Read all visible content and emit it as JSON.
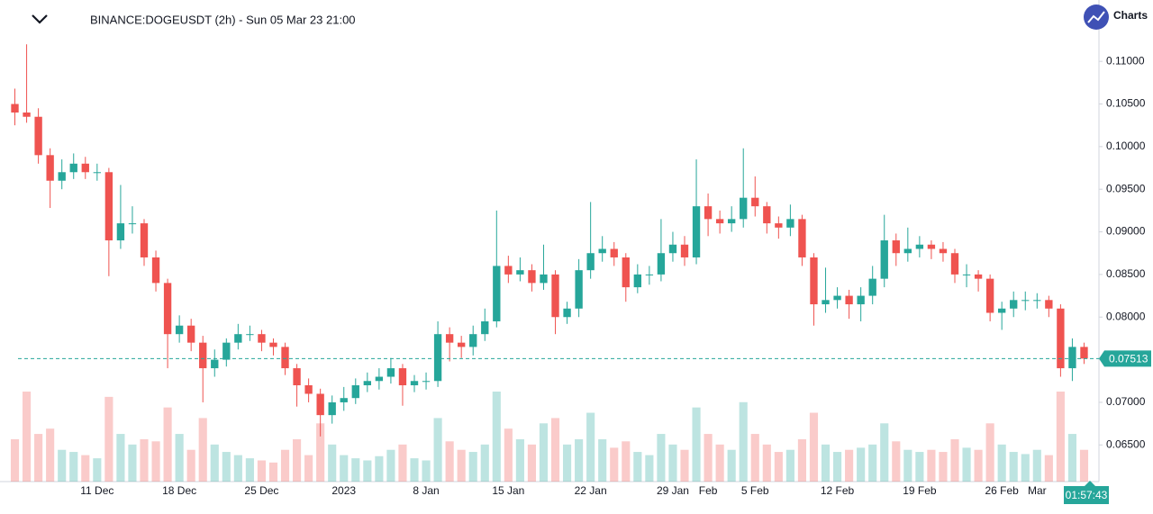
{
  "chart_data": {
    "type": "candlestick",
    "title": "BINANCE:DOGEUSDT (2h) - Sun 05 Mar 23 21:00",
    "categories": [
      null,
      null,
      null,
      null,
      null,
      null,
      null,
      "11 Dec",
      null,
      null,
      null,
      null,
      null,
      null,
      "18 Dec",
      null,
      null,
      null,
      null,
      null,
      null,
      "25 Dec",
      null,
      null,
      null,
      null,
      null,
      null,
      "2023",
      null,
      null,
      null,
      null,
      null,
      null,
      "8 Jan",
      null,
      null,
      null,
      null,
      null,
      null,
      "15 Jan",
      null,
      null,
      null,
      null,
      null,
      null,
      "22 Jan",
      null,
      null,
      null,
      null,
      null,
      null,
      "29 Jan",
      null,
      null,
      "Feb",
      null,
      null,
      null,
      "5 Feb",
      null,
      null,
      null,
      null,
      null,
      null,
      "12 Feb",
      null,
      null,
      null,
      null,
      null,
      null,
      "19 Feb",
      null,
      null,
      null,
      null,
      null,
      null,
      "26 Feb",
      null,
      null,
      "Mar",
      null,
      null,
      null,
      null
    ],
    "open": [
      0.105,
      0.104,
      0.1035,
      0.099,
      0.096,
      0.097,
      0.098,
      0.097,
      0.097,
      0.089,
      0.091,
      0.091,
      0.087,
      0.084,
      0.078,
      0.079,
      0.077,
      0.074,
      0.075,
      0.077,
      0.078,
      0.078,
      0.077,
      0.0765,
      0.074,
      0.072,
      0.071,
      0.0685,
      0.07,
      0.0705,
      0.072,
      0.0725,
      0.073,
      0.074,
      0.072,
      0.0725,
      0.0725,
      0.078,
      0.077,
      0.0765,
      0.078,
      0.0795,
      0.086,
      0.085,
      0.0855,
      0.084,
      0.085,
      0.08,
      0.081,
      0.0855,
      0.0875,
      0.088,
      0.087,
      0.0835,
      0.085,
      0.085,
      0.0875,
      0.0885,
      0.087,
      0.093,
      0.0915,
      0.091,
      0.0915,
      0.094,
      0.093,
      0.091,
      0.0905,
      0.0915,
      0.087,
      0.0815,
      0.082,
      0.0825,
      0.0815,
      0.0825,
      0.0845,
      0.089,
      0.0875,
      0.088,
      0.0885,
      0.088,
      0.0875,
      0.085,
      0.085,
      0.0845,
      0.0805,
      0.081,
      0.082,
      0.082,
      0.082,
      0.081,
      0.074,
      0.0765
    ],
    "high": [
      0.1068,
      0.112,
      0.1045,
      0.0998,
      0.0985,
      0.0992,
      0.0988,
      0.098,
      0.0975,
      0.0955,
      0.093,
      0.0915,
      0.0878,
      0.0845,
      0.0802,
      0.0798,
      0.0778,
      0.0762,
      0.0775,
      0.0792,
      0.079,
      0.0785,
      0.0775,
      0.077,
      0.0745,
      0.0728,
      0.0716,
      0.0708,
      0.0718,
      0.0728,
      0.0735,
      0.074,
      0.0752,
      0.0745,
      0.0732,
      0.0735,
      0.0795,
      0.0788,
      0.0778,
      0.079,
      0.081,
      0.0925,
      0.0872,
      0.087,
      0.0862,
      0.0885,
      0.0855,
      0.0818,
      0.0868,
      0.0935,
      0.0895,
      0.0888,
      0.0875,
      0.0862,
      0.086,
      0.0915,
      0.09,
      0.0895,
      0.0985,
      0.0945,
      0.0925,
      0.093,
      0.0998,
      0.0965,
      0.0935,
      0.0918,
      0.0932,
      0.092,
      0.0875,
      0.0858,
      0.0835,
      0.0832,
      0.0835,
      0.086,
      0.092,
      0.0898,
      0.0905,
      0.0895,
      0.089,
      0.0888,
      0.088,
      0.0862,
      0.0855,
      0.085,
      0.0818,
      0.083,
      0.083,
      0.0828,
      0.0825,
      0.0815,
      0.0775,
      0.077
    ],
    "low": [
      0.1025,
      0.1028,
      0.098,
      0.0928,
      0.095,
      0.0962,
      0.0962,
      0.096,
      0.0848,
      0.088,
      0.0898,
      0.086,
      0.083,
      0.074,
      0.077,
      0.076,
      0.07,
      0.073,
      0.0742,
      0.0762,
      0.0772,
      0.076,
      0.0755,
      0.0732,
      0.0695,
      0.07,
      0.066,
      0.0675,
      0.069,
      0.0698,
      0.0712,
      0.0715,
      0.0722,
      0.0696,
      0.0712,
      0.0715,
      0.0718,
      0.0748,
      0.0752,
      0.0755,
      0.0772,
      0.0788,
      0.084,
      0.0842,
      0.083,
      0.0832,
      0.078,
      0.0792,
      0.08,
      0.0845,
      0.0865,
      0.086,
      0.0818,
      0.0828,
      0.0838,
      0.0842,
      0.0865,
      0.086,
      0.0862,
      0.0895,
      0.0898,
      0.09,
      0.0905,
      0.0918,
      0.0898,
      0.0892,
      0.0895,
      0.086,
      0.079,
      0.0805,
      0.081,
      0.0798,
      0.0795,
      0.0815,
      0.0835,
      0.086,
      0.0865,
      0.087,
      0.0868,
      0.0865,
      0.084,
      0.0835,
      0.083,
      0.0795,
      0.0785,
      0.08,
      0.0808,
      0.081,
      0.08,
      0.073,
      0.0725,
      0.0745
    ],
    "close": [
      0.104,
      0.1035,
      0.099,
      0.096,
      0.097,
      0.098,
      0.097,
      0.097,
      0.089,
      0.091,
      0.091,
      0.087,
      0.084,
      0.078,
      0.079,
      0.077,
      0.074,
      0.075,
      0.077,
      0.078,
      0.078,
      0.077,
      0.0765,
      0.074,
      0.072,
      0.071,
      0.0685,
      0.07,
      0.0705,
      0.072,
      0.0725,
      0.073,
      0.074,
      0.072,
      0.0725,
      0.0725,
      0.078,
      0.077,
      0.0765,
      0.078,
      0.0795,
      0.086,
      0.085,
      0.0855,
      0.084,
      0.085,
      0.08,
      0.081,
      0.0855,
      0.0875,
      0.088,
      0.087,
      0.0835,
      0.085,
      0.085,
      0.0875,
      0.0885,
      0.087,
      0.093,
      0.0915,
      0.091,
      0.0915,
      0.094,
      0.093,
      0.091,
      0.0905,
      0.0915,
      0.087,
      0.0815,
      0.082,
      0.0825,
      0.0815,
      0.0825,
      0.0845,
      0.089,
      0.0875,
      0.088,
      0.0885,
      0.088,
      0.0875,
      0.085,
      0.085,
      0.0845,
      0.0805,
      0.081,
      0.082,
      0.082,
      0.082,
      0.081,
      0.074,
      0.0765,
      0.07513
    ],
    "volume": [
      40,
      85,
      45,
      50,
      30,
      28,
      25,
      22,
      80,
      45,
      35,
      40,
      38,
      70,
      45,
      30,
      60,
      35,
      28,
      25,
      22,
      20,
      18,
      30,
      40,
      25,
      55,
      35,
      25,
      22,
      20,
      24,
      30,
      35,
      22,
      20,
      60,
      38,
      30,
      28,
      35,
      85,
      50,
      40,
      35,
      55,
      60,
      35,
      40,
      65,
      40,
      32,
      38,
      28,
      25,
      45,
      35,
      30,
      70,
      45,
      35,
      30,
      75,
      45,
      35,
      28,
      30,
      40,
      65,
      35,
      28,
      30,
      32,
      35,
      55,
      38,
      30,
      28,
      30,
      28,
      40,
      32,
      30,
      55,
      35,
      28,
      26,
      30,
      25,
      85,
      45,
      30
    ],
    "up_color": "#26a69a",
    "down_color": "#ef5350",
    "ylim": [
      0.0607,
      0.1172
    ],
    "yticks": [
      {
        "value": 0.065,
        "label": "0.06500"
      },
      {
        "value": 0.07,
        "label": "0.07000"
      },
      {
        "value": 0.075,
        "label": "0.07500"
      },
      {
        "value": 0.08,
        "label": "0.08000"
      },
      {
        "value": 0.085,
        "label": "0.08500"
      },
      {
        "value": 0.09,
        "label": "0.09000"
      },
      {
        "value": 0.095,
        "label": "0.09500"
      },
      {
        "value": 0.1,
        "label": "0.10000"
      },
      {
        "value": 0.105,
        "label": "0.10500"
      },
      {
        "value": 0.11,
        "label": "0.11000"
      }
    ],
    "last_price": 0.07513,
    "countdown": "01:57:43"
  },
  "logo": "Charts"
}
